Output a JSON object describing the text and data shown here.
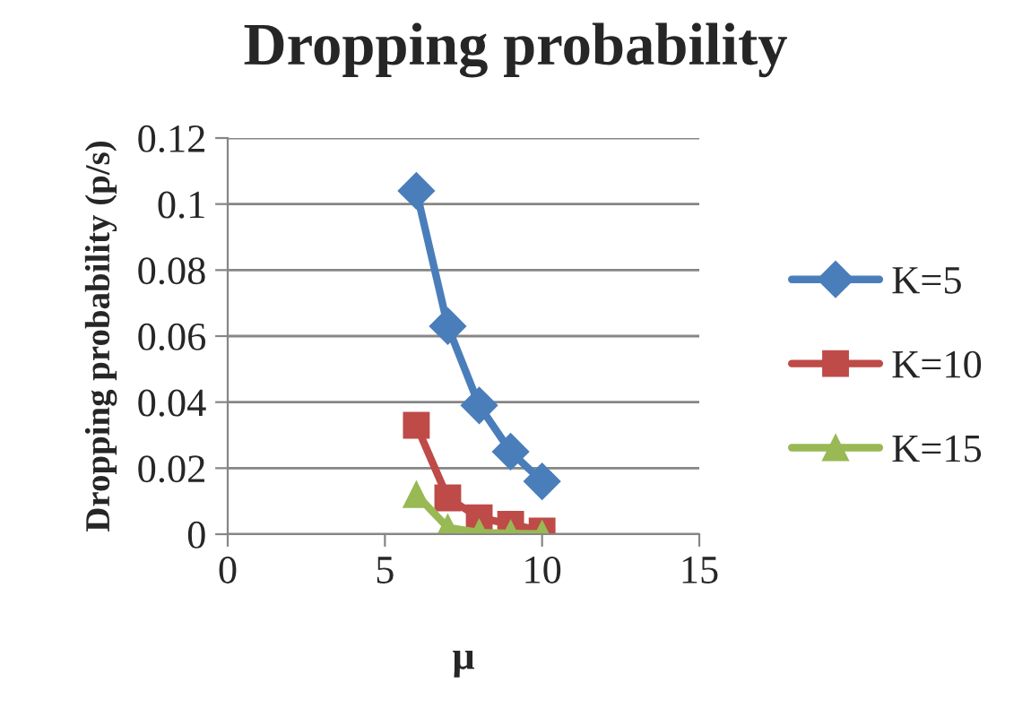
{
  "chart_data": {
    "type": "line",
    "title": "Dropping probability",
    "xlabel": "μ",
    "ylabel": "Dropping probability (p/s)",
    "x": [
      6,
      7,
      8,
      9,
      10
    ],
    "series": [
      {
        "name": "K=5",
        "color": "#4a7ebb",
        "marker": "diamond",
        "values": [
          0.104,
          0.063,
          0.039,
          0.025,
          0.016
        ]
      },
      {
        "name": "K=10",
        "color": "#be4b48",
        "marker": "square",
        "values": [
          0.033,
          0.011,
          0.005,
          0.003,
          0.001
        ]
      },
      {
        "name": "K=15",
        "color": "#98b954",
        "marker": "triangle",
        "values": [
          0.012,
          0.002,
          0.0005,
          0.0002,
          0.0001
        ]
      }
    ],
    "xlim": [
      0,
      15
    ],
    "xticks": [
      0,
      5,
      10,
      15
    ],
    "ylim": [
      0,
      0.12
    ],
    "yticks": [
      0,
      0.02,
      0.04,
      0.06,
      0.08,
      0.1,
      0.12
    ],
    "grid": "y",
    "legend": "right"
  }
}
